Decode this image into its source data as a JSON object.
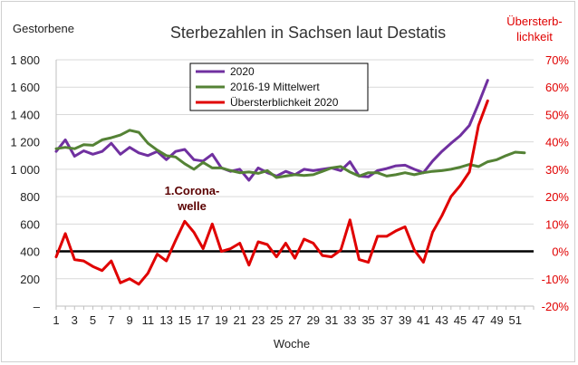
{
  "chart_data": {
    "type": "line",
    "title": "Sterbezahlen in Sachsen laut Destatis",
    "xlabel": "Woche",
    "ylabel": "Gestorbene",
    "ylabel_right_line1": "Übersterb-",
    "ylabel_right_line2": "lichkeit",
    "xlim": [
      1,
      53
    ],
    "ylim": [
      0,
      1800
    ],
    "ylim_right": [
      -20,
      70
    ],
    "x_ticks": [
      "1",
      "3",
      "5",
      "7",
      "9",
      "11",
      "13",
      "15",
      "17",
      "19",
      "21",
      "23",
      "25",
      "27",
      "29",
      "31",
      "33",
      "35",
      "37",
      "39",
      "41",
      "43",
      "45",
      "47",
      "49",
      "51"
    ],
    "y_ticks": [
      "–",
      "200",
      "400",
      "600",
      "800",
      "1 000",
      "1 200",
      "1 400",
      "1 600",
      "1 800"
    ],
    "y_right_ticks": [
      "-20%",
      "-10%",
      "0%",
      "10%",
      "20%",
      "30%",
      "40%",
      "50%",
      "60%",
      "70%"
    ],
    "annotation_line1": "1.Corona-",
    "annotation_line2": "welle",
    "legend_position": "top-center",
    "series": [
      {
        "name": "2020",
        "color": "#7030a0",
        "axis": "left",
        "x": [
          1,
          2,
          3,
          4,
          5,
          6,
          7,
          8,
          9,
          10,
          11,
          12,
          13,
          14,
          15,
          16,
          17,
          18,
          19,
          20,
          21,
          22,
          23,
          24,
          25,
          26,
          27,
          28,
          29,
          30,
          31,
          32,
          33,
          34,
          35,
          36,
          37,
          38,
          39,
          40,
          41,
          42,
          43,
          44,
          45,
          46,
          47,
          48
        ],
        "values": [
          1130,
          1215,
          1095,
          1135,
          1110,
          1130,
          1190,
          1110,
          1160,
          1120,
          1100,
          1130,
          1070,
          1130,
          1145,
          1070,
          1060,
          1110,
          1010,
          985,
          1000,
          920,
          1010,
          975,
          950,
          985,
          960,
          1000,
          990,
          1000,
          1010,
          990,
          1055,
          950,
          945,
          990,
          1005,
          1025,
          1030,
          1000,
          975,
          1060,
          1130,
          1190,
          1245,
          1320,
          1480,
          1650
        ]
      },
      {
        "name": "2016-19 Mittelwert",
        "color": "#548235",
        "axis": "left",
        "x": [
          1,
          2,
          3,
          4,
          5,
          6,
          7,
          8,
          9,
          10,
          11,
          12,
          13,
          14,
          15,
          16,
          17,
          18,
          19,
          20,
          21,
          22,
          23,
          24,
          25,
          26,
          27,
          28,
          29,
          30,
          31,
          32,
          33,
          34,
          35,
          36,
          37,
          38,
          39,
          40,
          41,
          42,
          43,
          44,
          45,
          46,
          47,
          48,
          49,
          50,
          51,
          52
        ],
        "values": [
          1150,
          1160,
          1150,
          1180,
          1175,
          1215,
          1230,
          1250,
          1285,
          1270,
          1190,
          1140,
          1100,
          1090,
          1040,
          1000,
          1050,
          1010,
          1010,
          990,
          975,
          980,
          970,
          990,
          940,
          950,
          960,
          955,
          960,
          985,
          1010,
          1020,
          980,
          950,
          975,
          975,
          950,
          960,
          975,
          960,
          975,
          985,
          990,
          1000,
          1015,
          1035,
          1020,
          1055,
          1070,
          1100,
          1125,
          1120
        ]
      },
      {
        "name": "Übersterblichkeit 2020",
        "color": "#e00000",
        "axis": "right",
        "x": [
          1,
          2,
          3,
          4,
          5,
          6,
          7,
          8,
          9,
          10,
          11,
          12,
          13,
          14,
          15,
          16,
          17,
          18,
          19,
          20,
          21,
          22,
          23,
          24,
          25,
          26,
          27,
          28,
          29,
          30,
          31,
          32,
          33,
          34,
          35,
          36,
          37,
          38,
          39,
          40,
          41,
          42,
          43,
          44,
          45,
          46,
          47,
          48
        ],
        "values": [
          -2,
          6.5,
          -3,
          -3.5,
          -5.5,
          -7,
          -3.5,
          -11.5,
          -10,
          -12,
          -8,
          -1,
          -3.5,
          4,
          11,
          7,
          1,
          10,
          0,
          1,
          3,
          -5,
          3.5,
          2.5,
          -2,
          3,
          -2.5,
          4.5,
          3,
          -1.5,
          -2,
          0.5,
          11.5,
          -3,
          -4,
          5.5,
          5.5,
          7.5,
          9,
          0.5,
          -4,
          7,
          13,
          20,
          24,
          29,
          46,
          55
        ]
      }
    ]
  }
}
